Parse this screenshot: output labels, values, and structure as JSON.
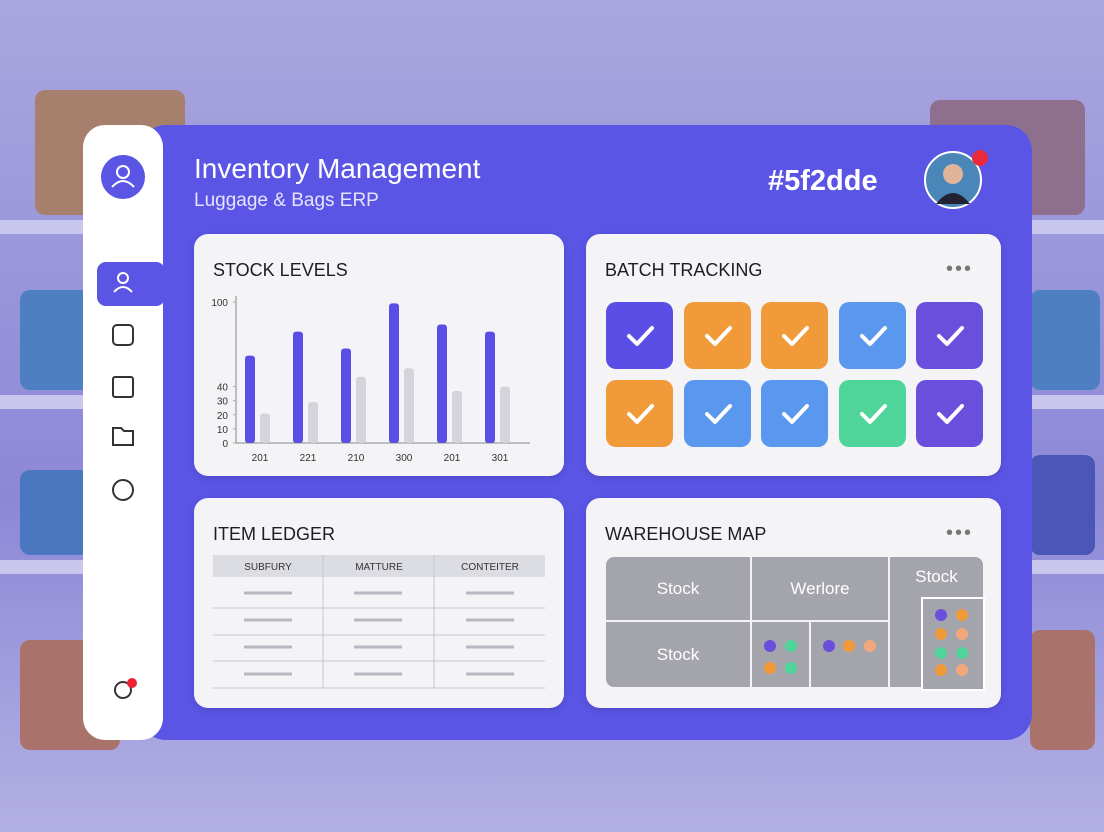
{
  "header": {
    "title": "Inventory Management",
    "subtitle": "Luggage & Bags ERP",
    "code": "#5f2dde"
  },
  "chart_data": {
    "type": "bar",
    "title": "STOCK LEVELS",
    "categories": [
      "201",
      "221",
      "210",
      "300",
      "201",
      "301"
    ],
    "series": [
      {
        "color": "#5b4ee6",
        "values": [
          62,
          79,
          67,
          99,
          84,
          79
        ]
      },
      {
        "color": "#d4d4dc",
        "values": [
          21,
          29,
          47,
          53,
          37,
          40
        ]
      }
    ],
    "ylim": [
      0,
      100
    ],
    "yticks": [
      0,
      10,
      20,
      30,
      40,
      100
    ],
    "grid": false
  },
  "batch_tracking": {
    "title": "BATCH TRACKING"
  },
  "item_ledger": {
    "title": "ITEM LEDGER",
    "columns": [
      "SUBFURY",
      "MATTURE",
      "CONTEITER"
    ]
  },
  "warehouse_map": {
    "title": "WAREHOUSE MAP",
    "zones": [
      "Stock",
      "Werlore",
      "Stock",
      "Stock"
    ]
  }
}
